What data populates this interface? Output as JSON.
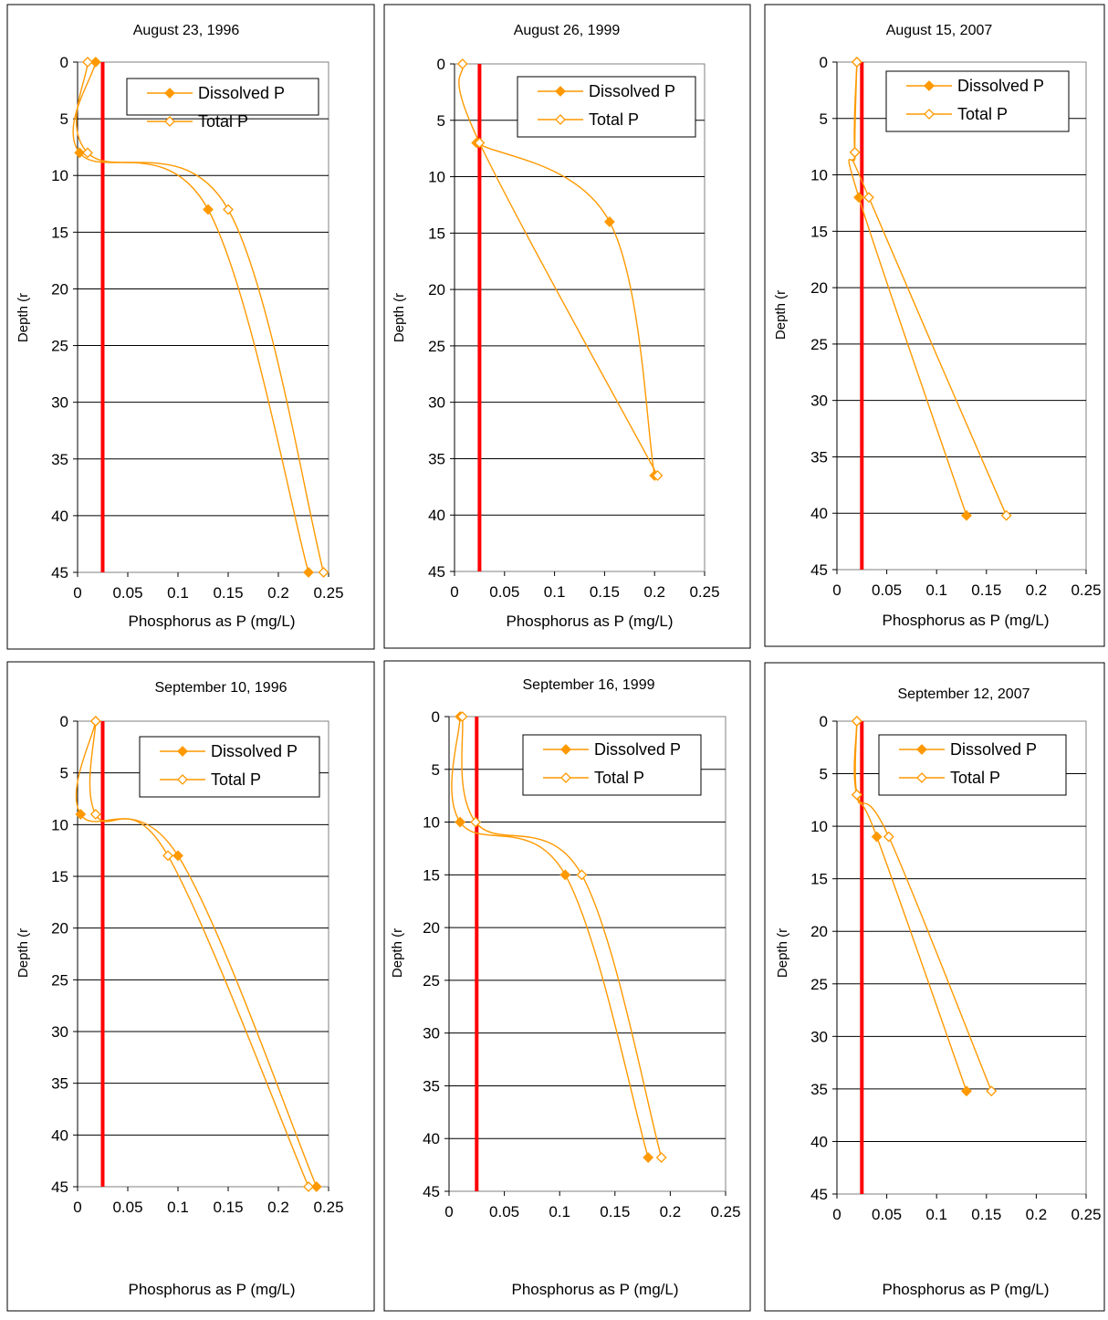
{
  "threshold_color": "#ff0000",
  "series_color": "#ff9900",
  "chart_data": [
    {
      "type": "line",
      "title": "August 23, 1996",
      "xlabel": "Phosphorus as P (mg/L)",
      "ylabel": "Depth (r",
      "xlim": [
        0,
        0.25
      ],
      "ylim": [
        45,
        0
      ],
      "x_ticks": [
        "0",
        "0.05",
        "0.1",
        "0.15",
        "0.2",
        "0.25"
      ],
      "y_ticks": [
        "0",
        "5",
        "10",
        "15",
        "20",
        "25",
        "30",
        "35",
        "40",
        "45"
      ],
      "grid": "horizontal",
      "legend": "top-right",
      "threshold_x": 0.025,
      "series": [
        {
          "name": "Dissolved P",
          "marker": "filled-diamond",
          "points": [
            [
              0.018,
              0
            ],
            [
              0.002,
              8
            ],
            [
              0.13,
              13
            ],
            [
              0.23,
              45
            ]
          ]
        },
        {
          "name": "Total P",
          "marker": "open-diamond",
          "points": [
            [
              0.01,
              0
            ],
            [
              0.01,
              8
            ],
            [
              0.15,
              13
            ],
            [
              0.245,
              45
            ]
          ]
        }
      ]
    },
    {
      "type": "line",
      "title": "August 26, 1999",
      "xlabel": "Phosphorus as P (mg/L)",
      "ylabel": "Depth (r",
      "xlim": [
        0,
        0.25
      ],
      "ylim": [
        45,
        0
      ],
      "x_ticks": [
        "0",
        "0.05",
        "0.1",
        "0.15",
        "0.2",
        "0.25"
      ],
      "y_ticks": [
        "0",
        "5",
        "10",
        "15",
        "20",
        "25",
        "30",
        "35",
        "40",
        "45"
      ],
      "grid": "horizontal",
      "legend": "top-right",
      "threshold_x": 0.025,
      "series": [
        {
          "name": "Dissolved P",
          "marker": "filled-diamond",
          "points": [
            [
              0.022,
              7
            ],
            [
              0.155,
              14
            ],
            [
              0.2,
              36.5
            ]
          ]
        },
        {
          "name": "Total P",
          "marker": "open-diamond",
          "points": [
            [
              0.008,
              0
            ],
            [
              0.025,
              7
            ],
            [
              0.203,
              36.5
            ]
          ]
        }
      ]
    },
    {
      "type": "line",
      "title": "August 15, 2007",
      "xlabel": "Phosphorus as P (mg/L)",
      "ylabel": "Depth (r",
      "xlim": [
        0,
        0.25
      ],
      "ylim": [
        45,
        0
      ],
      "x_ticks": [
        "0",
        "0.05",
        "0.1",
        "0.15",
        "0.2",
        "0.25"
      ],
      "y_ticks": [
        "0",
        "5",
        "10",
        "15",
        "20",
        "25",
        "30",
        "35",
        "40",
        "45"
      ],
      "grid": "horizontal",
      "legend": "top-right",
      "threshold_x": 0.025,
      "series": [
        {
          "name": "Dissolved P",
          "marker": "filled-diamond",
          "points": [
            [
              0.02,
              0
            ],
            [
              0.018,
              8
            ],
            [
              0.022,
              12
            ],
            [
              0.13,
              40.2
            ]
          ]
        },
        {
          "name": "Total P",
          "marker": "open-diamond",
          "points": [
            [
              0.02,
              0
            ],
            [
              0.018,
              8
            ],
            [
              0.032,
              12
            ],
            [
              0.17,
              40.2
            ]
          ]
        }
      ]
    },
    {
      "type": "line",
      "title": "September 10, 1996",
      "xlabel": "Phosphorus as P (mg/L)",
      "ylabel": "Depth (r",
      "xlim": [
        0,
        0.25
      ],
      "ylim": [
        45,
        0
      ],
      "x_ticks": [
        "0",
        "0.05",
        "0.1",
        "0.15",
        "0.2",
        "0.25"
      ],
      "y_ticks": [
        "0",
        "5",
        "10",
        "15",
        "20",
        "25",
        "30",
        "35",
        "40",
        "45"
      ],
      "grid": "horizontal",
      "legend": "top-right",
      "threshold_x": 0.025,
      "series": [
        {
          "name": "Dissolved P",
          "marker": "filled-diamond",
          "points": [
            [
              0.018,
              0
            ],
            [
              0.003,
              9
            ],
            [
              0.1,
              13
            ],
            [
              0.238,
              45
            ]
          ]
        },
        {
          "name": "Total P",
          "marker": "open-diamond",
          "points": [
            [
              0.018,
              0
            ],
            [
              0.018,
              9
            ],
            [
              0.09,
              13
            ],
            [
              0.23,
              45
            ]
          ]
        }
      ]
    },
    {
      "type": "line",
      "title": "September 16, 1999",
      "xlabel": "Phosphorus as P (mg/L)",
      "ylabel": "Depth (r",
      "xlim": [
        0,
        0.25
      ],
      "ylim": [
        45,
        0
      ],
      "x_ticks": [
        "0",
        "0.05",
        "0.1",
        "0.15",
        "0.2",
        "0.25"
      ],
      "y_ticks": [
        "0",
        "5",
        "10",
        "15",
        "20",
        "25",
        "30",
        "35",
        "40",
        "45"
      ],
      "grid": "horizontal",
      "legend": "top-right",
      "threshold_x": 0.025,
      "series": [
        {
          "name": "Dissolved P",
          "marker": "filled-diamond",
          "points": [
            [
              0.01,
              0
            ],
            [
              0.01,
              10
            ],
            [
              0.105,
              15
            ],
            [
              0.18,
              41.8
            ]
          ]
        },
        {
          "name": "Total P",
          "marker": "open-diamond",
          "points": [
            [
              0.012,
              0
            ],
            [
              0.024,
              10
            ],
            [
              0.12,
              15
            ],
            [
              0.192,
              41.8
            ]
          ]
        }
      ]
    },
    {
      "type": "line",
      "title": "September 12, 2007",
      "xlabel": "Phosphorus as P (mg/L)",
      "ylabel": "Depth (r",
      "xlim": [
        0,
        0.25
      ],
      "ylim": [
        45,
        0
      ],
      "x_ticks": [
        "0",
        "0.05",
        "0.1",
        "0.15",
        "0.2",
        "0.25"
      ],
      "y_ticks": [
        "0",
        "5",
        "10",
        "15",
        "20",
        "25",
        "30",
        "35",
        "40",
        "45"
      ],
      "grid": "horizontal",
      "legend": "top-right",
      "threshold_x": 0.025,
      "series": [
        {
          "name": "Dissolved P",
          "marker": "filled-diamond",
          "points": [
            [
              0.02,
              0
            ],
            [
              0.02,
              7
            ],
            [
              0.04,
              11
            ],
            [
              0.13,
              35.2
            ]
          ]
        },
        {
          "name": "Total P",
          "marker": "open-diamond",
          "points": [
            [
              0.02,
              0
            ],
            [
              0.02,
              7
            ],
            [
              0.052,
              11
            ],
            [
              0.155,
              35.2
            ]
          ]
        }
      ]
    }
  ]
}
